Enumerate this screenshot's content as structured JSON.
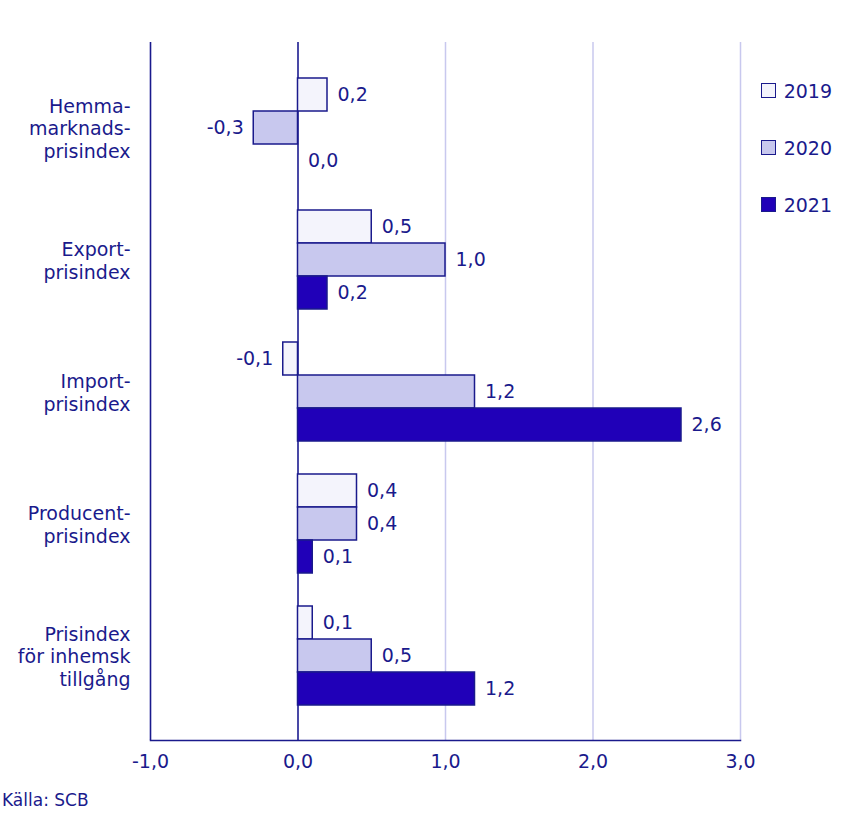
{
  "chart_data": {
    "type": "bar",
    "orientation": "horizontal",
    "categories": [
      "Hemma-\nmarknads-\nprisindex",
      "Export-\nprisindex",
      "Import-\nprisindex",
      "Producent-\nprisindex",
      "Prisindex\nför inhemsk\ntillgång"
    ],
    "series": [
      {
        "name": "2019",
        "color": "#f4f4fc",
        "values": [
          0.2,
          0.5,
          -0.1,
          0.4,
          0.1
        ],
        "value_labels": [
          "0,2",
          "0,5",
          "-0,1",
          "0,4",
          "0,1"
        ]
      },
      {
        "name": "2020",
        "color": "#c8c8ee",
        "values": [
          -0.3,
          1.0,
          1.2,
          0.4,
          0.5
        ],
        "value_labels": [
          "-0,3",
          "1,0",
          "1,2",
          "0,4",
          "0,5"
        ]
      },
      {
        "name": "2021",
        "color": "#2000b8",
        "values": [
          0.0,
          0.2,
          2.6,
          0.1,
          1.2
        ],
        "value_labels": [
          "0,0",
          "0,2",
          "2,6",
          "0,1",
          "1,2"
        ]
      }
    ],
    "xlim": [
      -1,
      3
    ],
    "xticks": [
      {
        "value": -1,
        "label": "-1,0"
      },
      {
        "value": 0,
        "label": "0,0"
      },
      {
        "value": 1,
        "label": "1,0"
      },
      {
        "value": 2,
        "label": "2,0"
      },
      {
        "value": 3,
        "label": "3,0"
      }
    ],
    "grid": true,
    "legend": "top-right",
    "data_labels": true,
    "caption": "Källa: SCB"
  }
}
